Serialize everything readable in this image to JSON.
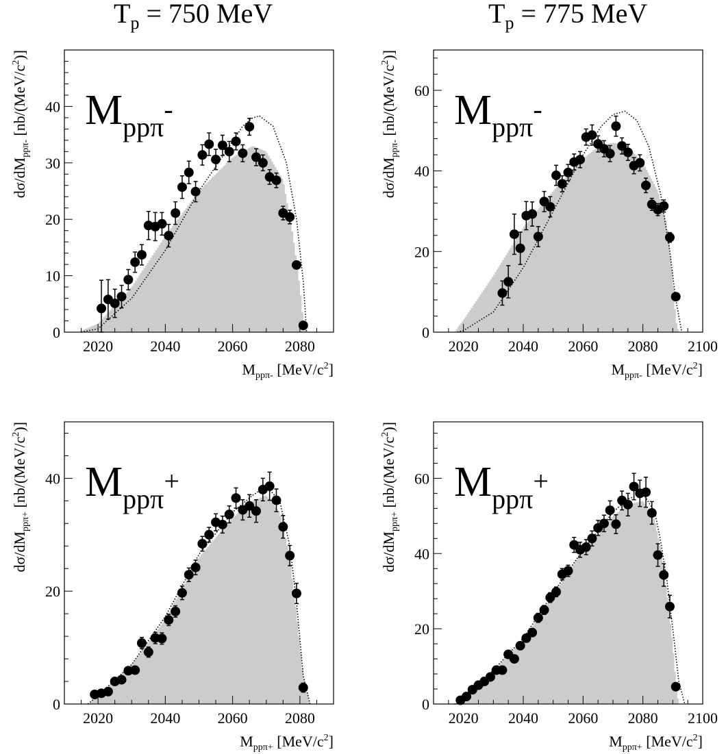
{
  "column_titles": [
    {
      "main": "T",
      "sub": "p",
      "rest": " = 750 MeV"
    },
    {
      "main": "T",
      "sub": "p",
      "rest": " = 775 MeV"
    }
  ],
  "chart_data": [
    {
      "type": "scatter",
      "panel_label": {
        "main": "M",
        "sub": "pp",
        "pi": "π",
        "charge": "-"
      },
      "xlabel": {
        "main": "M",
        "sub": "ppπ-",
        "unit": " [MeV/c",
        "exp": "2",
        "end": "]"
      },
      "ylabel": {
        "pre": "dσ/dM",
        "sub": "ppπ-",
        "unit": " [nb/(MeV/c",
        "exp": "2",
        "end": ")]"
      },
      "xlim": [
        2010,
        2090
      ],
      "ylim": [
        0,
        50
      ],
      "xticks": [
        2020,
        2040,
        2060,
        2080
      ],
      "yticks": [
        0,
        10,
        20,
        30,
        40
      ],
      "points": {
        "x": [
          2021,
          2023,
          2025,
          2027,
          2029,
          2031,
          2033,
          2035,
          2037,
          2039,
          2041,
          2043,
          2045,
          2047,
          2049,
          2051,
          2053,
          2055,
          2057,
          2059,
          2061,
          2063,
          2065,
          2067,
          2069,
          2071,
          2073,
          2075,
          2077,
          2079,
          2081
        ],
        "y": [
          4.2,
          5.8,
          5.1,
          6.3,
          9.3,
          12.4,
          13.7,
          18.9,
          18.7,
          19.2,
          17.1,
          21.1,
          25.7,
          28.3,
          24.9,
          31.4,
          33.3,
          30.6,
          33.1,
          32.0,
          33.8,
          31.7,
          36.4,
          31.0,
          30.0,
          27.5,
          26.9,
          21.1,
          20.4,
          11.9,
          1.2
        ],
        "err": [
          5.0,
          3.5,
          2.5,
          2.0,
          1.8,
          1.8,
          1.8,
          2.5,
          2.5,
          2.0,
          2.0,
          2.0,
          2.0,
          2.0,
          1.8,
          1.8,
          2.0,
          1.8,
          1.8,
          1.8,
          1.5,
          1.5,
          1.5,
          1.5,
          1.4,
          1.3,
          1.3,
          1.2,
          1.2,
          0.6,
          0.3
        ]
      },
      "simulation_hist": {
        "x": [
          2014,
          2020,
          2030,
          2040,
          2050,
          2060,
          2066,
          2070,
          2075,
          2078,
          2080,
          2081,
          2082
        ],
        "y": [
          0,
          1.5,
          8,
          17,
          25,
          31,
          33,
          32,
          27,
          17,
          8,
          2,
          0
        ]
      },
      "phase_space_curve": {
        "x": [
          2015,
          2020,
          2030,
          2040,
          2050,
          2058,
          2063,
          2066,
          2068,
          2072,
          2076,
          2079,
          2081,
          2082
        ],
        "y": [
          0,
          0.6,
          6,
          14.5,
          25,
          32,
          36.5,
          38,
          38.3,
          36.5,
          30,
          20,
          9,
          0
        ]
      }
    },
    {
      "type": "scatter",
      "panel_label": {
        "main": "M",
        "sub": "pp",
        "pi": "π",
        "charge": "-"
      },
      "xlabel": {
        "main": "M",
        "sub": "ppπ-",
        "unit": " [MeV/c",
        "exp": "2",
        "end": "]"
      },
      "ylabel": {
        "pre": "dσ/dM",
        "sub": "ppπ-",
        "unit": " [nb/(MeV/c",
        "exp": "2",
        "end": ")]"
      },
      "xlim": [
        2010,
        2100
      ],
      "ylim": [
        0,
        70
      ],
      "xticks": [
        2020,
        2040,
        2060,
        2080,
        2100
      ],
      "yticks": [
        0,
        20,
        40,
        60
      ],
      "points": {
        "x": [
          2033,
          2035,
          2037,
          2039,
          2041,
          2043,
          2045,
          2047,
          2049,
          2051,
          2053,
          2055,
          2057,
          2059,
          2061,
          2063,
          2065,
          2067,
          2069,
          2071,
          2073,
          2075,
          2077,
          2079,
          2081,
          2083,
          2085,
          2087,
          2089,
          2091
        ],
        "y": [
          9.7,
          12.5,
          24.3,
          20.8,
          28.9,
          29.3,
          23.7,
          32.4,
          31.1,
          38.9,
          36.8,
          39.6,
          42.2,
          42.8,
          48.4,
          48.9,
          46.7,
          45.5,
          44.3,
          51.1,
          46.2,
          44.6,
          41.3,
          42.0,
          36.4,
          31.7,
          30.4,
          31.3,
          23.5,
          8.8
        ],
        "err": [
          3.0,
          4.0,
          5.0,
          4.0,
          3.5,
          3.0,
          2.5,
          2.5,
          2.5,
          2.5,
          2.0,
          2.0,
          2.0,
          2.0,
          2.0,
          2.5,
          2.0,
          2.0,
          2.0,
          2.5,
          2.0,
          2.0,
          2.0,
          2.0,
          1.8,
          1.5,
          1.5,
          1.5,
          1.2,
          0.5
        ]
      },
      "simulation_hist": {
        "x": [
          2017,
          2020,
          2030,
          2040,
          2050,
          2060,
          2065,
          2070,
          2075,
          2080,
          2085,
          2088,
          2090,
          2091,
          2092
        ],
        "y": [
          0,
          3,
          14,
          26,
          35,
          43,
          46,
          47,
          46,
          42,
          35,
          27,
          14,
          3,
          0
        ]
      },
      "phase_space_curve": {
        "x": [
          2018,
          2020,
          2030,
          2040,
          2050,
          2060,
          2066,
          2070,
          2074,
          2078,
          2082,
          2086,
          2089,
          2091,
          2093
        ],
        "y": [
          0,
          0.4,
          5,
          16,
          30,
          44,
          51,
          54,
          54.8,
          52.5,
          46,
          34,
          20,
          8,
          0
        ]
      }
    },
    {
      "type": "scatter",
      "panel_label": {
        "main": "M",
        "sub": "pp",
        "pi": "π",
        "charge": "+"
      },
      "xlabel": {
        "main": "M",
        "sub": "ppπ+",
        "unit": " [MeV/c",
        "exp": "2",
        "end": "]"
      },
      "ylabel": {
        "pre": "dσ/dM",
        "sub": "ppπ+",
        "unit": " [nb/(MeV/c",
        "exp": "2",
        "end": ")]"
      },
      "xlim": [
        2010,
        2090
      ],
      "ylim": [
        0,
        50
      ],
      "xticks": [
        2020,
        2040,
        2060,
        2080
      ],
      "yticks": [
        0,
        20,
        40
      ],
      "points": {
        "x": [
          2019,
          2021,
          2023,
          2025,
          2027,
          2029,
          2031,
          2033,
          2035,
          2037,
          2039,
          2041,
          2043,
          2045,
          2047,
          2049,
          2051,
          2053,
          2055,
          2057,
          2059,
          2061,
          2063,
          2065,
          2067,
          2069,
          2071,
          2073,
          2075,
          2077,
          2079,
          2081
        ],
        "y": [
          1.7,
          1.9,
          2.2,
          4.0,
          4.3,
          5.9,
          6.0,
          10.8,
          9.2,
          11.7,
          11.6,
          14.9,
          16.4,
          19.7,
          22.9,
          24.2,
          28.4,
          30.0,
          32.2,
          31.8,
          33.6,
          36.5,
          34.4,
          35.1,
          34.2,
          38.0,
          38.6,
          36.1,
          31.4,
          26.3,
          19.6,
          2.9
        ],
        "err": [
          0.3,
          0.3,
          0.4,
          0.5,
          0.5,
          0.6,
          0.6,
          1.0,
          0.9,
          1.0,
          1.0,
          1.0,
          1.0,
          1.2,
          1.2,
          1.3,
          1.3,
          1.3,
          1.5,
          1.5,
          1.5,
          1.8,
          1.8,
          2.0,
          2.0,
          2.0,
          2.5,
          2.0,
          2.0,
          1.8,
          1.8,
          0.8
        ]
      },
      "simulation_hist": {
        "x": [
          2017,
          2020,
          2030,
          2040,
          2050,
          2060,
          2066,
          2070,
          2074,
          2077,
          2079,
          2081,
          2083
        ],
        "y": [
          0,
          1.5,
          7,
          15,
          26,
          33,
          36,
          37,
          34,
          26,
          16,
          5,
          0
        ]
      },
      "phase_space_curve": {
        "x": [
          2017,
          2020,
          2030,
          2040,
          2050,
          2060,
          2066,
          2070,
          2074,
          2077,
          2079,
          2081,
          2083
        ],
        "y": [
          0,
          1.5,
          7,
          15.5,
          26.5,
          34,
          37,
          38.6,
          36,
          28,
          18,
          5,
          0
        ]
      }
    },
    {
      "type": "scatter",
      "panel_label": {
        "main": "M",
        "sub": "pp",
        "pi": "π",
        "charge": "+"
      },
      "xlabel": {
        "main": "M",
        "sub": "ppπ+",
        "unit": " [MeV/c",
        "exp": "2",
        "end": "]"
      },
      "ylabel": {
        "pre": "dσ/dM",
        "sub": "ppπ+",
        "unit": " [nb/(MeV/c",
        "exp": "2",
        "end": ")]"
      },
      "xlim": [
        2010,
        2100
      ],
      "ylim": [
        0,
        75
      ],
      "xticks": [
        2020,
        2040,
        2060,
        2080,
        2100
      ],
      "yticks": [
        0,
        20,
        40,
        60
      ],
      "points": {
        "x": [
          2019,
          2021,
          2023,
          2025,
          2027,
          2029,
          2031,
          2033,
          2035,
          2037,
          2039,
          2041,
          2043,
          2045,
          2047,
          2049,
          2051,
          2053,
          2055,
          2057,
          2059,
          2061,
          2063,
          2065,
          2067,
          2069,
          2071,
          2073,
          2075,
          2077,
          2079,
          2081,
          2083,
          2085,
          2087,
          2089,
          2091
        ],
        "y": [
          1.0,
          2.0,
          3.8,
          5.0,
          6.0,
          7.2,
          9.0,
          9.0,
          13.2,
          12.0,
          15.5,
          17.5,
          19.0,
          22.9,
          25.0,
          28.3,
          29.8,
          34.5,
          35.4,
          42.3,
          41.0,
          41.7,
          44.0,
          46.8,
          48.0,
          51.5,
          47.8,
          54.1,
          53.0,
          57.8,
          56.0,
          56.3,
          50.8,
          39.6,
          34.3,
          25.9,
          4.6
        ],
        "err": [
          0.2,
          0.3,
          0.4,
          0.5,
          0.6,
          0.6,
          0.7,
          0.7,
          0.9,
          0.9,
          1.0,
          1.0,
          1.0,
          1.2,
          1.2,
          1.3,
          1.3,
          1.5,
          1.5,
          2.0,
          2.0,
          2.0,
          2.0,
          2.0,
          2.2,
          2.5,
          2.5,
          2.5,
          3.0,
          3.5,
          3.5,
          4.0,
          3.0,
          3.0,
          3.0,
          3.0,
          1.0
        ]
      },
      "simulation_hist": {
        "x": [
          2017,
          2020,
          2030,
          2040,
          2050,
          2060,
          2065,
          2070,
          2075,
          2080,
          2084,
          2086,
          2088,
          2090,
          2091,
          2092
        ],
        "y": [
          0,
          1,
          9,
          17,
          29,
          41,
          45,
          50,
          53,
          54,
          49,
          41,
          30,
          16,
          6,
          0
        ]
      },
      "phase_space_curve": {
        "x": [
          2017,
          2020,
          2030,
          2040,
          2050,
          2060,
          2065,
          2070,
          2075,
          2080,
          2084,
          2086,
          2088,
          2090,
          2092,
          2094
        ],
        "y": [
          0,
          1,
          9,
          17.5,
          29.5,
          41,
          46,
          51,
          54.5,
          56,
          51,
          43,
          33,
          20,
          6,
          0
        ]
      }
    }
  ]
}
